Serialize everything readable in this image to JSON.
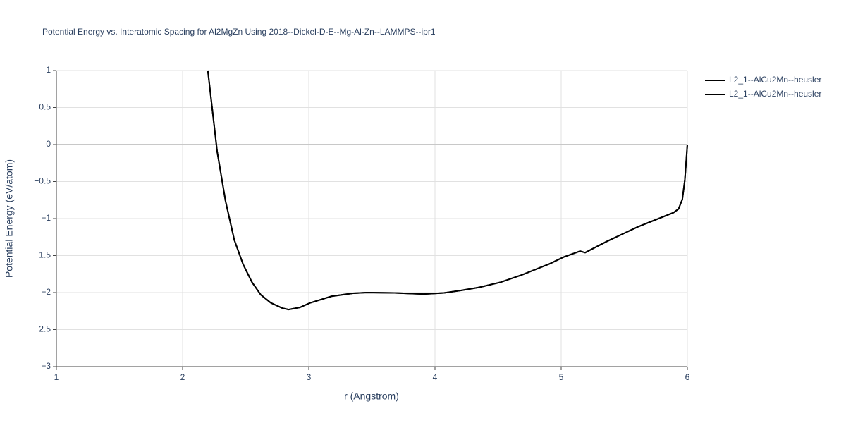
{
  "chart_data": {
    "type": "line",
    "title": "Potential Energy vs. Interatomic Spacing for Al2MgZn Using 2018--Dickel-D-E--Mg-Al-Zn--LAMMPS--ipr1",
    "x_label": "r (Angstrom)",
    "y_label": "Potential Energy (eV/atom)",
    "x": [
      2.2,
      2.274,
      2.34,
      2.41,
      2.48,
      2.55,
      2.62,
      2.7,
      2.79,
      2.84,
      2.93,
      3.01,
      3.18,
      3.35,
      3.46,
      3.68,
      3.91,
      4.07,
      4.21,
      4.35,
      4.52,
      4.69,
      4.91,
      5.02,
      5.15,
      5.19,
      5.36,
      5.61,
      5.89,
      5.93,
      5.96,
      5.98,
      6.0
    ],
    "series": [
      {
        "name": "L2_1--AlCu2Mn--heusler",
        "color": "#000000",
        "values": [
          1,
          -0.095,
          -0.76,
          -1.29,
          -1.62,
          -1.86,
          -2.03,
          -2.14,
          -2.21,
          -2.23,
          -2.2,
          -2.14,
          -2.05,
          -2.01,
          -2.0,
          -2.005,
          -2.02,
          -2.005,
          -1.97,
          -1.93,
          -1.86,
          -1.76,
          -1.61,
          -1.52,
          -1.44,
          -1.46,
          -1.31,
          -1.11,
          -0.92,
          -0.87,
          -0.74,
          -0.48,
          0
        ]
      },
      {
        "name": "L2_1--AlCu2Mn--heusler",
        "color": "#000000",
        "values": [
          1,
          -0.095,
          -0.76,
          -1.29,
          -1.62,
          -1.86,
          -2.03,
          -2.14,
          -2.21,
          -2.23,
          -2.2,
          -2.14,
          -2.05,
          -2.01,
          -2.0,
          -2.005,
          -2.02,
          -2.005,
          -1.97,
          -1.93,
          -1.86,
          -1.76,
          -1.61,
          -1.52,
          -1.44,
          -1.46,
          -1.31,
          -1.11,
          -0.92,
          -0.87,
          -0.74,
          -0.48,
          0
        ]
      }
    ],
    "xlim": [
      1,
      6
    ],
    "xticks": [
      1,
      2,
      3,
      4,
      5,
      6
    ],
    "ylim": [
      -3,
      1
    ],
    "yticks": [
      {
        "value": -3,
        "label": "−3"
      },
      {
        "value": -2.5,
        "label": "−2.5"
      },
      {
        "value": -2,
        "label": "−2"
      },
      {
        "value": -1.5,
        "label": "−1.5"
      },
      {
        "value": -1,
        "label": "−1"
      },
      {
        "value": -0.5,
        "label": "−0.5"
      },
      0,
      0.5,
      1
    ],
    "grid": true,
    "legend": "top-right"
  }
}
